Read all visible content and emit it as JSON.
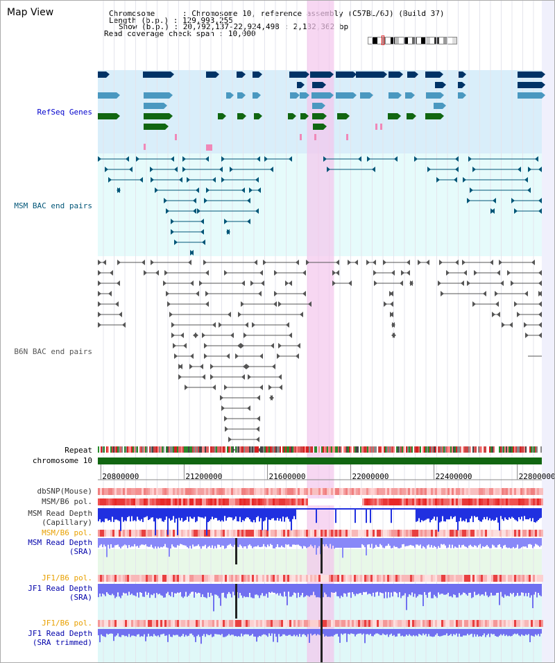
{
  "page": {
    "title": "Map View"
  },
  "info": {
    "chromosome_key": "Chromosome",
    "chromosome_value": "Chromosome 10, reference assembly (C57BL/6J) (Build 37)",
    "length_key": "Length (b.p.)",
    "length_value": "129,993,255",
    "show_key": "Show (b.p.)",
    "show_value": "20,792,137-22,924,498 : 2,132,362 bp",
    "coverage_key": "Read coverage check span",
    "coverage_value": "10,000",
    "separator": ":"
  },
  "view": {
    "start_bp": 20792137,
    "end_bp": 22924498,
    "highlight_start_bp": 21790000,
    "highlight_end_bp": 21920000,
    "accent_highlight": "#f4c6ec"
  },
  "tracks": {
    "refseq": {
      "label": "RefSeq Genes",
      "color": "#0000cc",
      "bg": "#d9eefa"
    },
    "msm_bac": {
      "label": "MSM BAC end pairs",
      "color": "#005577",
      "bg": "#e6fbfb"
    },
    "b6n_bac": {
      "label": "B6N BAC end pairs",
      "color": "#555555"
    },
    "repeat": {
      "label": "Repeat"
    },
    "chromosome": {
      "label": "chromosome 10",
      "color": "#116611"
    },
    "dbsnp": {
      "label": "dbSNP(Mouse)"
    },
    "msm_b6_pol": {
      "label": "MSM/B6 pol."
    },
    "msm_depth_cap": {
      "label_line1": "MSM Read Depth",
      "label_line2": "(Capillary)"
    },
    "msm_b6_pol2": {
      "label": "MSM/B6 pol.",
      "color": "#e8a000"
    },
    "msm_depth_sra": {
      "label_line1": "MSM Read Depth",
      "label_line2": "(SRA)",
      "color": "#0000aa"
    },
    "jf1_pol": {
      "label": "JF1/B6 pol.",
      "color": "#e8a000"
    },
    "jf1_depth_sra": {
      "label_line1": "JF1 Read Depth",
      "label_line2": "(SRA)",
      "color": "#0000aa"
    },
    "jf1_pol2": {
      "label": "JF1/B6 pol.",
      "color": "#e8a000"
    },
    "jf1_depth_trim": {
      "label_line1": "JF1 Read Depth",
      "label_line2": "(SRA trimmed)",
      "color": "#0000aa"
    }
  },
  "axis": {
    "ticks": [
      {
        "bp": 20800000,
        "label": "20800000"
      },
      {
        "bp": 21200000,
        "label": "21200000"
      },
      {
        "bp": 21600000,
        "label": "21600000"
      },
      {
        "bp": 22000000,
        "label": "22000000"
      },
      {
        "bp": 22400000,
        "label": "22400000"
      },
      {
        "bp": 22800000,
        "label": "22800000"
      }
    ]
  },
  "ideogram": {
    "bands": [
      "#ffffff",
      "#000000",
      "#ffffff",
      "#888888",
      "#ffffff",
      "#000000",
      "#bbbbbb",
      "#ffffff",
      "#000000",
      "#ffffff",
      "#666666",
      "#ffffff",
      "#000000",
      "#cccccc",
      "#ffffff",
      "#333333",
      "#ffffff",
      "#999999",
      "#ffffff",
      "#dddddd"
    ],
    "marker_color": "#e00000"
  }
}
